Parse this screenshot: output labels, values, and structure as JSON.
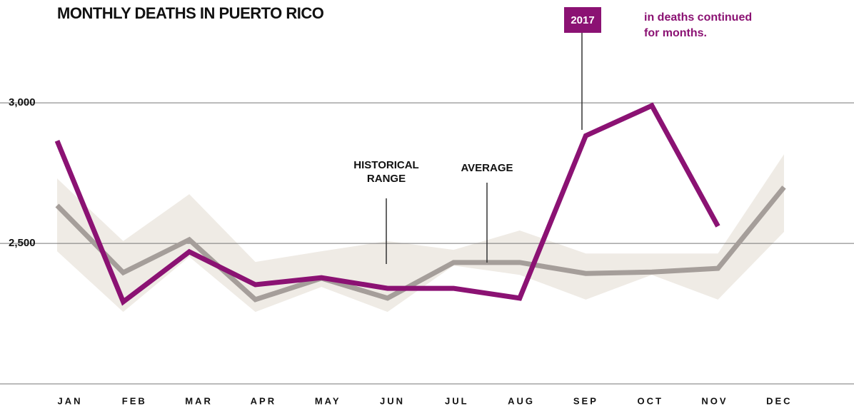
{
  "chart_data": {
    "type": "line",
    "title": "MONTHLY DEATHS IN PUERTO RICO",
    "categories": [
      "JAN",
      "FEB",
      "MAR",
      "APR",
      "MAY",
      "JUN",
      "JUL",
      "AUG",
      "SEP",
      "OCT",
      "NOV",
      "DEC"
    ],
    "series": [
      {
        "name": "AVERAGE",
        "color": "#a59e9a",
        "values": [
          2635,
          2396,
          2513,
          2300,
          2376,
          2305,
          2432,
          2432,
          2393,
          2398,
          2411,
          2700
        ]
      },
      {
        "name": "2017",
        "color": "#8b1273",
        "values": [
          2865,
          2292,
          2470,
          2353,
          2378,
          2340,
          2340,
          2305,
          2883,
          2990,
          2561,
          null
        ]
      }
    ],
    "range": {
      "name_lines": [
        "HISTORICAL",
        "RANGE"
      ],
      "color": "#efebe5",
      "upper": [
        2731,
        2508,
        2675,
        2434,
        2472,
        2508,
        2477,
        2546,
        2464,
        2464,
        2464,
        2817
      ],
      "lower": [
        2472,
        2256,
        2452,
        2256,
        2345,
        2256,
        2421,
        2388,
        2300,
        2388,
        2300,
        2541
      ]
    },
    "note_lines": [
      "in deaths continued",
      "for months."
    ],
    "ylim": [
      2000,
      3300
    ],
    "yticks": [
      {
        "value": 2500,
        "label": "2,500"
      },
      {
        "value": 3000,
        "label": "3,000"
      }
    ],
    "grid": true
  }
}
